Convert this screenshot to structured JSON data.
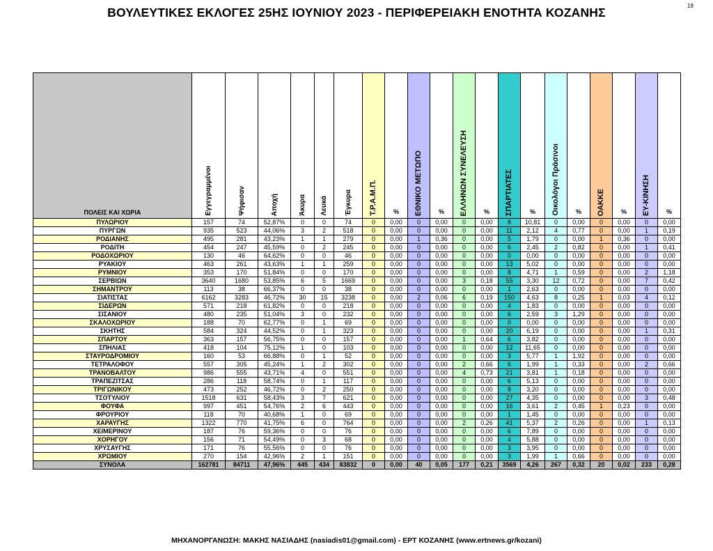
{
  "title": "ΒΟΥΛΕΥΤΙΚΕΣ ΕΚΛΟΓΕΣ 25ΗΣ ΙΟΥΝΙΟΥ 2023 - ΠΕΡΙΦΕΡΕΙΑΚΗ ΕΝΟΤΗΤΑ ΚΟΖΑΝΗΣ",
  "page_number": "19",
  "headers": {
    "name": "ΠΟΛΕΙΣ ΚΑΙ ΧΩΡΙΑ",
    "cols": [
      "Εγγεγραμμένοι",
      "Ψήφισαν",
      "Αποχή",
      "Άκυρα",
      "Λευκά",
      "Έγκυρα",
      "Τ.Ρ.Α.Μ.Π.",
      "%",
      "ΕΘΝΙΚΟ ΜΕΤΩΠΟ",
      "%",
      "ΕΛΛΗΝΩΝ ΣΥΝΕΛΕΥΣΗ",
      "%",
      "ΣΠΑΡΤΙΑΤΕΣ",
      "%",
      "Οικολόγοι Πράσινοι",
      "%",
      "ΟΑΚΚΕ",
      "%",
      "ΕΥ-ΚΙΝΗΣΗ",
      "%"
    ]
  },
  "party_colors": {
    "trampe": "#ffffc0",
    "ethniko_metopo": "#c0c0ff",
    "ellinon_synelefsi": "#ccffcc",
    "spartiates": "#33cccc",
    "oikologoi": "#ccffff",
    "oakke": "#ffcc99",
    "ey_kinisi": "#ccccff"
  },
  "rows": [
    [
      "ΠΥΛΩΡΙΟΥ",
      "157",
      "74",
      "52,87%",
      "0",
      "0",
      "74",
      "0",
      "0,00",
      "0",
      "0,00",
      "0",
      "0,00",
      "8",
      "10,81",
      "0",
      "0,00",
      "0",
      "0,00",
      "0",
      "0,00"
    ],
    [
      "ΠΥΡΓΩΝ",
      "935",
      "523",
      "44,06%",
      "3",
      "2",
      "518",
      "0",
      "0,00",
      "0",
      "0,00",
      "0",
      "0,00",
      "11",
      "2,12",
      "4",
      "0,77",
      "0",
      "0,00",
      "1",
      "0,19"
    ],
    [
      "ΡΟΔΙΑΝΗΣ",
      "495",
      "281",
      "43,23%",
      "1",
      "1",
      "279",
      "0",
      "0,00",
      "1",
      "0,36",
      "0",
      "0,00",
      "5",
      "1,79",
      "0",
      "0,00",
      "1",
      "0,36",
      "0",
      "0,00"
    ],
    [
      "ΡΟΔΙΤΗ",
      "454",
      "247",
      "45,59%",
      "0",
      "2",
      "245",
      "0",
      "0,00",
      "0",
      "0,00",
      "0",
      "0,00",
      "6",
      "2,45",
      "2",
      "0,82",
      "0",
      "0,00",
      "1",
      "0,41"
    ],
    [
      "ΡΟΔΟΧΩΡΙΟΥ",
      "130",
      "46",
      "64,62%",
      "0",
      "0",
      "46",
      "0",
      "0,00",
      "0",
      "0,00",
      "0",
      "0,00",
      "0",
      "0,00",
      "0",
      "0,00",
      "0",
      "0,00",
      "0",
      "0,00"
    ],
    [
      "ΡΥΑΚΙΟΥ",
      "463",
      "261",
      "43,63%",
      "1",
      "1",
      "259",
      "0",
      "0,00",
      "0",
      "0,00",
      "0",
      "0,00",
      "13",
      "5,02",
      "0",
      "0,00",
      "0",
      "0,00",
      "0",
      "0,00"
    ],
    [
      "ΡΥΜΝΙΟΥ",
      "353",
      "170",
      "51,84%",
      "0",
      "0",
      "170",
      "0",
      "0,00",
      "0",
      "0,00",
      "0",
      "0,00",
      "8",
      "4,71",
      "1",
      "0,59",
      "0",
      "0,00",
      "2",
      "1,18"
    ],
    [
      "ΣΕΡΒΙΩΝ",
      "3640",
      "1680",
      "53,85%",
      "6",
      "5",
      "1669",
      "0",
      "0,00",
      "0",
      "0,00",
      "3",
      "0,18",
      "55",
      "3,30",
      "12",
      "0,72",
      "0",
      "0,00",
      "7",
      "0,42"
    ],
    [
      "ΣΗΜΑΝΤΡΟΥ",
      "113",
      "38",
      "66,37%",
      "0",
      "0",
      "38",
      "0",
      "0,00",
      "0",
      "0,00",
      "0",
      "0,00",
      "1",
      "2,63",
      "0",
      "0,00",
      "0",
      "0,00",
      "0",
      "0,00"
    ],
    [
      "ΣΙΑΤΙΣΤΑΣ",
      "6162",
      "3283",
      "46,72%",
      "30",
      "15",
      "3238",
      "0",
      "0,00",
      "2",
      "0,06",
      "6",
      "0,19",
      "150",
      "4,63",
      "8",
      "0,25",
      "1",
      "0,03",
      "4",
      "0,12"
    ],
    [
      "ΣΙΔΕΡΩΝ",
      "571",
      "218",
      "61,82%",
      "0",
      "0",
      "218",
      "0",
      "0,00",
      "0",
      "0,00",
      "0",
      "0,00",
      "4",
      "1,83",
      "0",
      "0,00",
      "0",
      "0,00",
      "0",
      "0,00"
    ],
    [
      "ΣΙΣΑΝΙΟΥ",
      "480",
      "235",
      "51,04%",
      "3",
      "0",
      "232",
      "0",
      "0,00",
      "0",
      "0,00",
      "0",
      "0,00",
      "6",
      "2,59",
      "3",
      "1,29",
      "0",
      "0,00",
      "0",
      "0,00"
    ],
    [
      "ΣΚΑΛΟΧΩΡΙΟΥ",
      "188",
      "70",
      "62,77%",
      "0",
      "1",
      "69",
      "0",
      "0,00",
      "0",
      "0,00",
      "0",
      "0,00",
      "0",
      "0,00",
      "0",
      "0,00",
      "0",
      "0,00",
      "0",
      "0,00"
    ],
    [
      "ΣΚΗΤΗΣ",
      "584",
      "324",
      "44,52%",
      "0",
      "1",
      "323",
      "0",
      "0,00",
      "0",
      "0,00",
      "0",
      "0,00",
      "20",
      "6,19",
      "0",
      "0,00",
      "0",
      "0,00",
      "1",
      "0,31"
    ],
    [
      "ΣΠΑΡΤΟΥ",
      "363",
      "157",
      "56,75%",
      "0",
      "0",
      "157",
      "0",
      "0,00",
      "0",
      "0,00",
      "1",
      "0,64",
      "6",
      "3,82",
      "0",
      "0,00",
      "0",
      "0,00",
      "0",
      "0,00"
    ],
    [
      "ΣΠΗΛΙΑΣ",
      "418",
      "104",
      "75,12%",
      "1",
      "0",
      "103",
      "0",
      "0,00",
      "0",
      "0,00",
      "0",
      "0,00",
      "12",
      "11,65",
      "0",
      "0,00",
      "0",
      "0,00",
      "0",
      "0,00"
    ],
    [
      "ΣΤΑΥΡΟΔΡΟΜΙΟΥ",
      "160",
      "53",
      "66,88%",
      "0",
      "1",
      "52",
      "0",
      "0,00",
      "0",
      "0,00",
      "0",
      "0,00",
      "3",
      "5,77",
      "1",
      "1,92",
      "0",
      "0,00",
      "0",
      "0,00"
    ],
    [
      "ΤΕΤΡΑΛΟΦΟΥ",
      "557",
      "305",
      "45,24%",
      "1",
      "2",
      "302",
      "0",
      "0,00",
      "0",
      "0,00",
      "2",
      "0,66",
      "6",
      "1,99",
      "1",
      "0,33",
      "0",
      "0,00",
      "2",
      "0,66"
    ],
    [
      "ΤΡΑΝΟΒΑΛΤΟΥ",
      "986",
      "555",
      "43,71%",
      "4",
      "0",
      "551",
      "0",
      "0,00",
      "0",
      "0,00",
      "4",
      "0,73",
      "21",
      "3,81",
      "1",
      "0,18",
      "0",
      "0,00",
      "0",
      "0,00"
    ],
    [
      "ΤΡΑΠΕΖΙΤΣΑΣ",
      "286",
      "118",
      "58,74%",
      "0",
      "1",
      "117",
      "0",
      "0,00",
      "0",
      "0,00",
      "0",
      "0,00",
      "6",
      "5,13",
      "0",
      "0,00",
      "0",
      "0,00",
      "0",
      "0,00"
    ],
    [
      "ΤΡΙΓΩΝΙΚΟΥ",
      "473",
      "252",
      "46,72%",
      "0",
      "2",
      "250",
      "0",
      "0,00",
      "0",
      "0,00",
      "0",
      "0,00",
      "8",
      "3,20",
      "0",
      "0,00",
      "0",
      "0,00",
      "0",
      "0,00"
    ],
    [
      "ΤΣΟΤΥΛΙΟΥ",
      "1518",
      "631",
      "58,43%",
      "3",
      "7",
      "621",
      "0",
      "0,00",
      "0",
      "0,00",
      "0",
      "0,00",
      "27",
      "4,35",
      "0",
      "0,00",
      "0",
      "0,00",
      "3",
      "0,48"
    ],
    [
      "ΦΟΥΦΑ",
      "997",
      "451",
      "54,76%",
      "2",
      "6",
      "443",
      "0",
      "0,00",
      "0",
      "0,00",
      "0",
      "0,00",
      "16",
      "3,61",
      "2",
      "0,45",
      "1",
      "0,23",
      "0",
      "0,00"
    ],
    [
      "ΦΡΟΥΡΙΟΥ",
      "118",
      "70",
      "40,68%",
      "1",
      "0",
      "69",
      "0",
      "0,00",
      "0",
      "0,00",
      "0",
      "0,00",
      "1",
      "1,45",
      "0",
      "0,00",
      "0",
      "0,00",
      "0",
      "0,00"
    ],
    [
      "ΧΑΡΑΥΓΗΣ",
      "1322",
      "770",
      "41,75%",
      "6",
      "0",
      "764",
      "0",
      "0,00",
      "0",
      "0,00",
      "2",
      "0,26",
      "41",
      "5,37",
      "2",
      "0,26",
      "0",
      "0,00",
      "1",
      "0,13"
    ],
    [
      "ΧΕΙΜΕΡΙΝΟΥ",
      "187",
      "76",
      "59,36%",
      "0",
      "0",
      "76",
      "0",
      "0,00",
      "0",
      "0,00",
      "0",
      "0,00",
      "6",
      "7,89",
      "0",
      "0,00",
      "0",
      "0,00",
      "0",
      "0,00"
    ],
    [
      "ΧΟΡΗΓΟΥ",
      "156",
      "71",
      "54,49%",
      "0",
      "3",
      "68",
      "0",
      "0,00",
      "0",
      "0,00",
      "0",
      "0,00",
      "4",
      "5,88",
      "0",
      "0,00",
      "0",
      "0,00",
      "0",
      "0,00"
    ],
    [
      "ΧΡΥΣΑΥΓΗΣ",
      "171",
      "76",
      "55,56%",
      "0",
      "0",
      "76",
      "0",
      "0,00",
      "0",
      "0,00",
      "0",
      "0,00",
      "3",
      "3,95",
      "0",
      "0,00",
      "0",
      "0,00",
      "0",
      "0,00"
    ],
    [
      "ΧΡΩΜΙΟΥ",
      "270",
      "154",
      "42,96%",
      "2",
      "1",
      "151",
      "0",
      "0,00",
      "0",
      "0,00",
      "0",
      "0,00",
      "3",
      "1,99",
      "1",
      "0,66",
      "0",
      "0,00",
      "0",
      "0,00"
    ]
  ],
  "totals": [
    "ΣΥΝΟΛΑ",
    "162781",
    "84711",
    "47,96%",
    "445",
    "434",
    "83832",
    "0",
    "0,00",
    "40",
    "0,05",
    "177",
    "0,21",
    "3569",
    "4,26",
    "267",
    "0,32",
    "20",
    "0,02",
    "233",
    "0,28"
  ],
  "footer": "ΜΗΧΑΝΟΡΓΑΝΩΣΗ: ΜΑΚΗΣ ΝΑΣΙΑΔΗΣ (nasiadis01@gmail.com) - ΕΡΤ ΚΟΖΑΝΗΣ (www.ertnews.gr/kozani)"
}
